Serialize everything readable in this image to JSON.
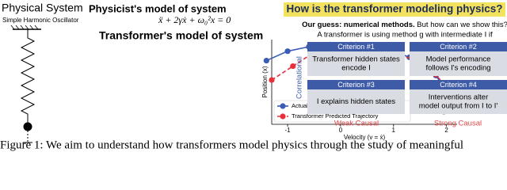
{
  "left": {
    "title": "Physical System",
    "subtitle": "Simple Harmonic Oscillator"
  },
  "middle": {
    "physicist_title": "Physicist's model of system",
    "equation": "ẍ + 2γẋ + ω₀²x = 0",
    "transformer_title": "Transformer's model of system"
  },
  "chart_data": {
    "type": "line",
    "xlabel": "Velocity (v = ẋ)",
    "ylabel": "Position (x)",
    "xlim": [
      -1.3,
      2.2
    ],
    "ylim": [
      -0.45,
      1.08
    ],
    "xticks": [
      -1,
      0,
      1,
      2
    ],
    "legend": "lower left",
    "series": [
      {
        "name": "Actual Trajectory: ω₀ = 2, γ = 0, Δt = 0.16",
        "color": "#3a5bb8",
        "marker": "circle",
        "linestyle": "solid",
        "x": [
          -1.4,
          -1.0,
          -0.6,
          -0.2,
          0.2,
          0.6,
          1.0,
          1.3,
          1.6,
          1.8,
          1.95,
          2.0,
          1.95
        ],
        "values": [
          0.7,
          0.87,
          0.95,
          0.99,
          0.99,
          0.95,
          0.87,
          0.76,
          0.6,
          0.43,
          0.22,
          0.0,
          -0.22
        ]
      },
      {
        "name": "Transformer Predicted Trajectory",
        "color": "#e8303a",
        "marker": "circle",
        "linestyle": "dashed",
        "x": [
          -1.3,
          -0.9,
          -0.5,
          -0.1,
          0.3,
          0.7,
          1.1,
          1.5,
          1.8,
          2.0,
          2.05
        ],
        "values": [
          0.35,
          0.6,
          0.85,
          0.98,
          0.99,
          0.93,
          0.83,
          0.65,
          0.45,
          0.2,
          -0.05
        ]
      }
    ]
  },
  "right": {
    "title": "How is the transformer modeling physics?",
    "guess_bold": "Our guess: numerical methods.",
    "guess_rest": "But how can we show this?",
    "definition": "A transformer is using method g with intermediate I if",
    "correlational": "Correlational",
    "criteria": [
      {
        "header": "Criterion #1",
        "lines": [
          "Transformer hidden states",
          "encode I"
        ]
      },
      {
        "header": "Criterion #2",
        "lines": [
          "Model performance",
          "follows I's encoding"
        ]
      },
      {
        "header": "Criterion #3",
        "lines": [
          "I explains hidden states"
        ]
      },
      {
        "header": "Criterion #4",
        "lines": [
          "Interventions alter",
          "model output from I to I′"
        ]
      }
    ],
    "weak": "Weak Causal",
    "strong": "Strong Causal"
  },
  "caption": "Figure 1: We aim to understand how transformers model physics through the study of meaningful"
}
